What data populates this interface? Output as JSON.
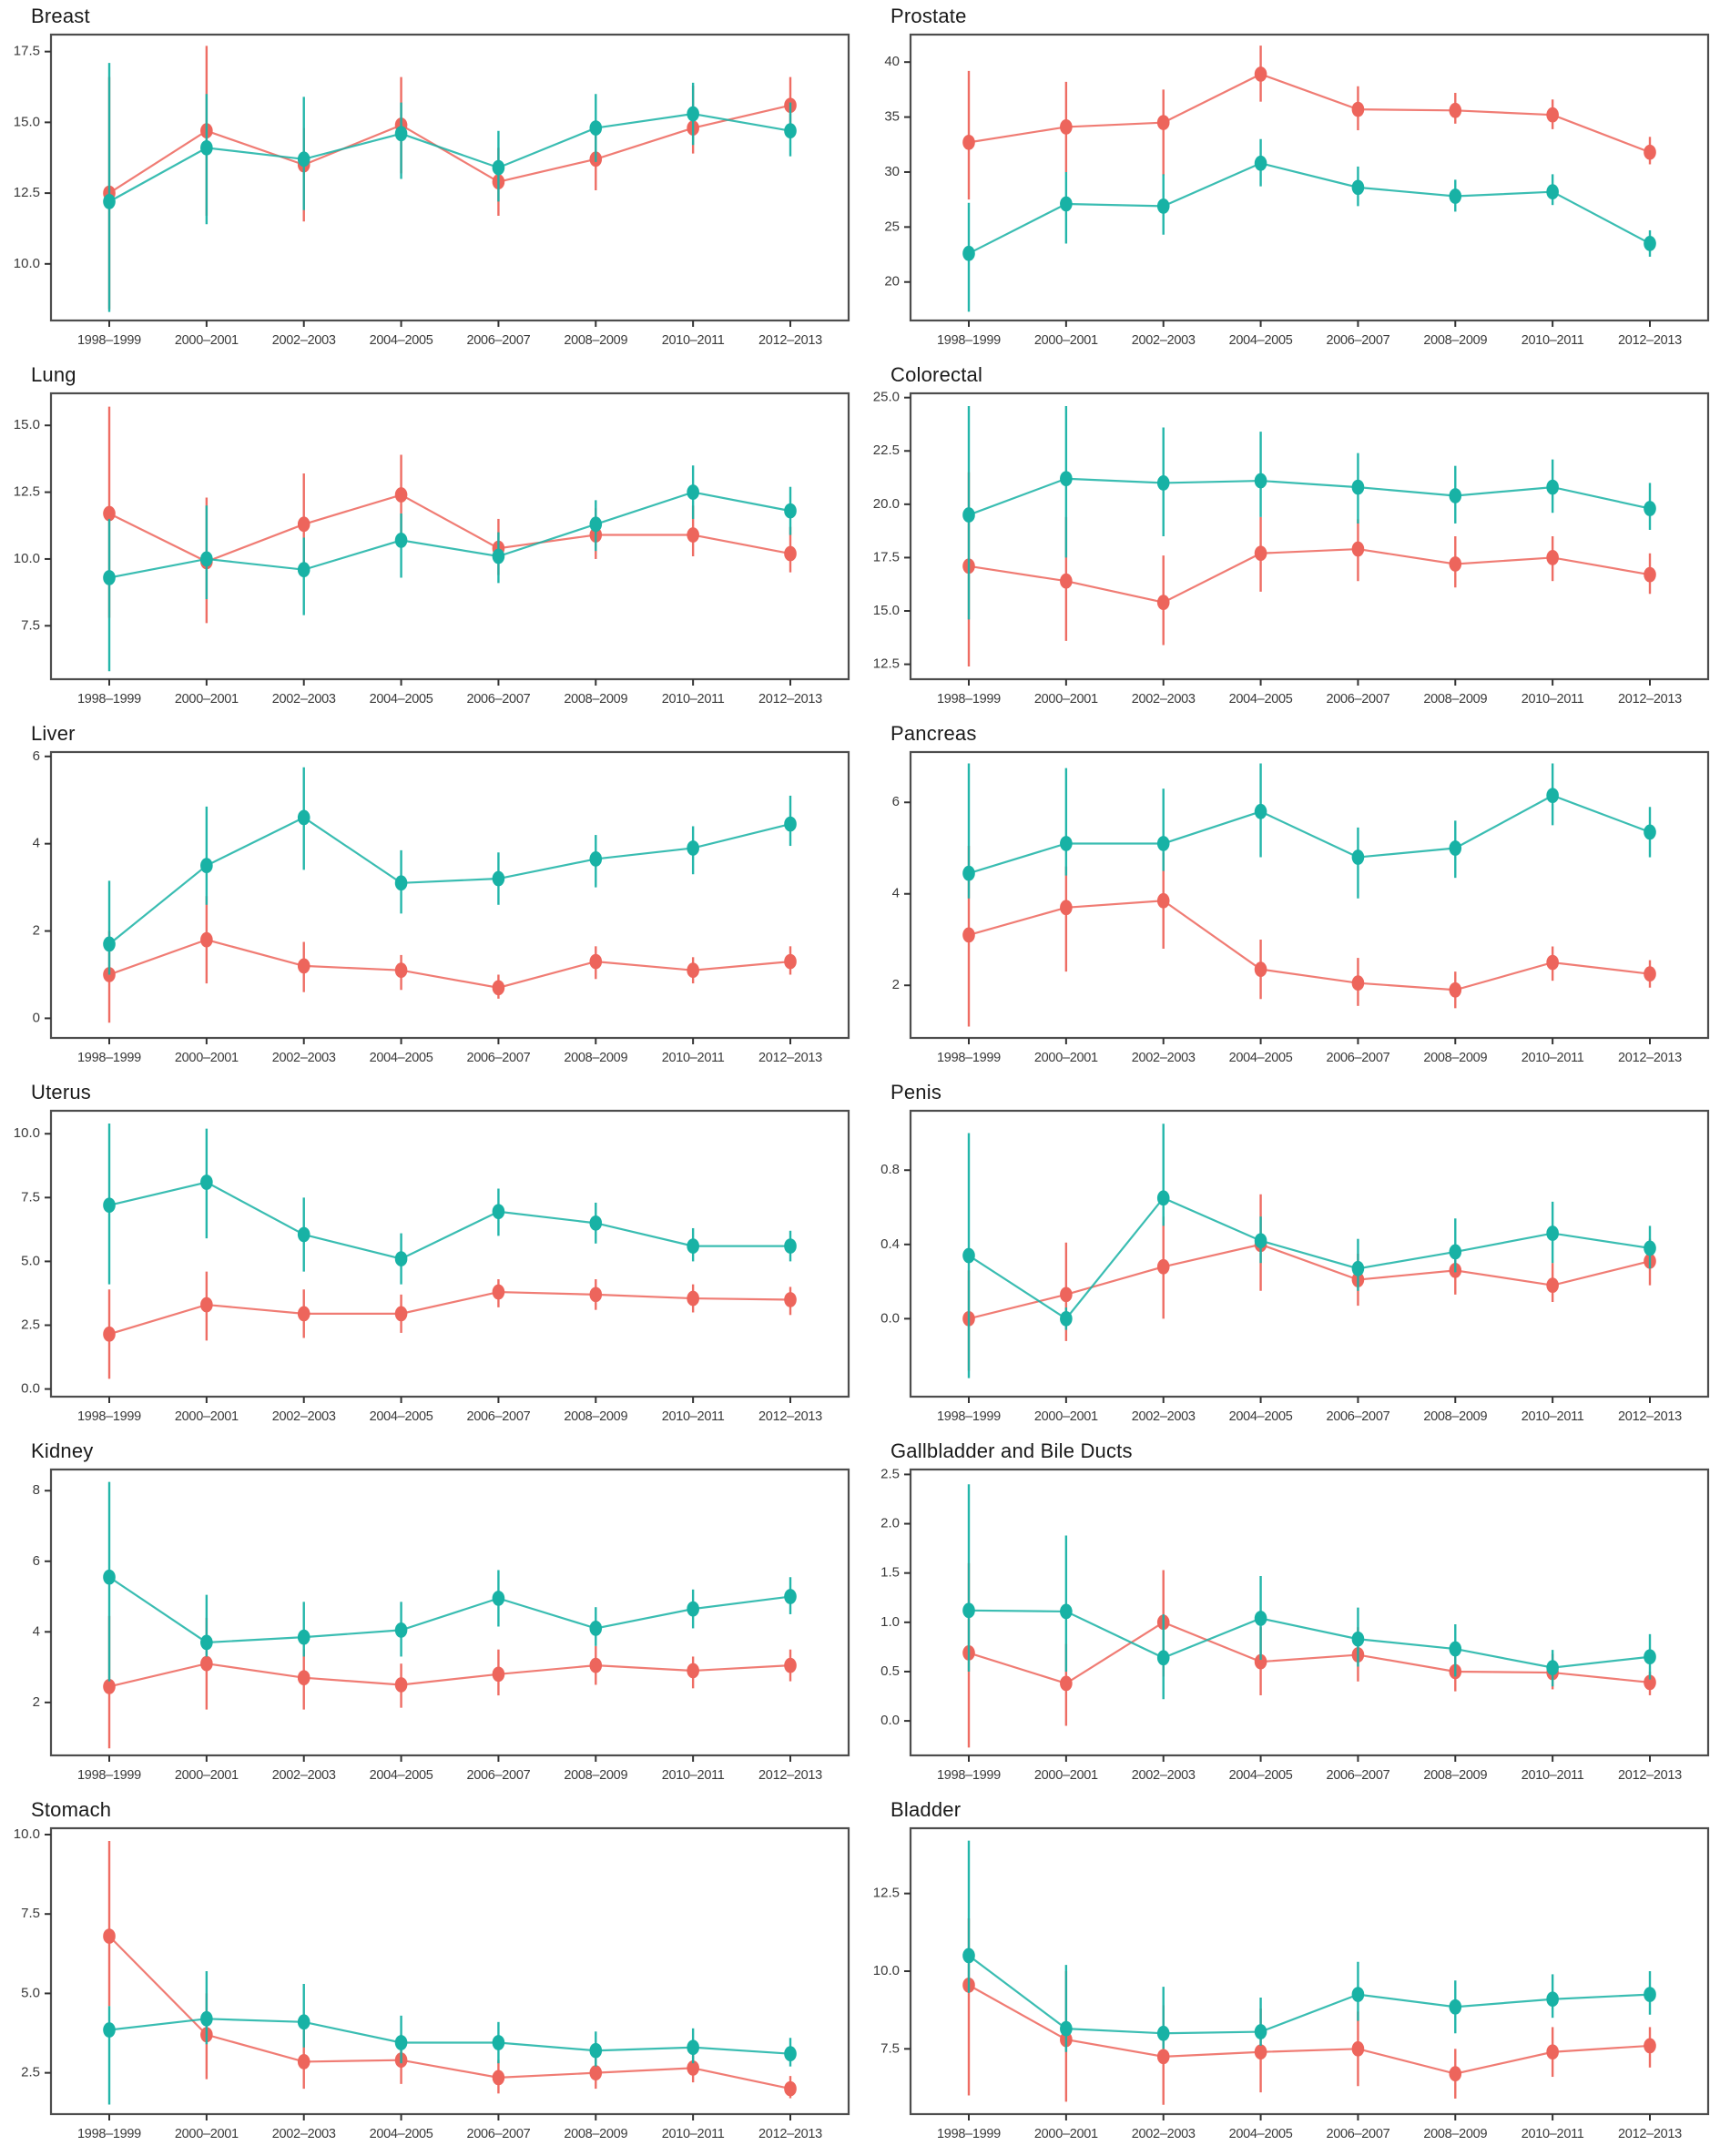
{
  "colors": {
    "red": "#ed655c",
    "teal": "#18b2a5",
    "panel_border": "#4d4d4d",
    "tick_mark": "#333333",
    "tick_text": "#3a3a3a",
    "title_text": "#1a1a1a",
    "background": "#ffffff"
  },
  "categories": [
    "1998–1999",
    "2000–2001",
    "2002–2003",
    "2004–2005",
    "2006–2007",
    "2008–2009",
    "2010–2011",
    "2012–2013"
  ],
  "chart_data": [
    {
      "type": "line+errorbar",
      "title": "Breast",
      "xlabel": "",
      "ylabel": "",
      "ytick_labels": [
        "10.0",
        "12.5",
        "15.0",
        "17.5"
      ],
      "yticks": [
        10.0,
        12.5,
        15.0,
        17.5
      ],
      "ylim": [
        8.0,
        18.1
      ],
      "series": [
        {
          "key": "red",
          "values": [
            12.5,
            14.7,
            13.5,
            14.9,
            12.9,
            13.7,
            14.8,
            15.6
          ],
          "lo": [
            8.4,
            11.7,
            11.5,
            13.2,
            11.7,
            12.6,
            13.9,
            14.5
          ],
          "hi": [
            16.6,
            17.7,
            14.8,
            16.6,
            14.1,
            14.9,
            16.3,
            16.6
          ]
        },
        {
          "key": "teal",
          "values": [
            12.2,
            14.1,
            13.7,
            14.6,
            13.4,
            14.8,
            15.3,
            14.7
          ],
          "lo": [
            8.3,
            11.4,
            11.9,
            13.0,
            12.2,
            13.6,
            14.2,
            13.8
          ],
          "hi": [
            17.1,
            16.0,
            15.9,
            15.7,
            14.7,
            16.0,
            16.4,
            15.7
          ]
        }
      ]
    },
    {
      "type": "line+errorbar",
      "title": "Prostate",
      "xlabel": "",
      "ylabel": "",
      "ytick_labels": [
        "20",
        "25",
        "30",
        "35",
        "40"
      ],
      "yticks": [
        20,
        25,
        30,
        35,
        40
      ],
      "ylim": [
        16.5,
        42.5
      ],
      "series": [
        {
          "key": "red",
          "values": [
            32.7,
            34.1,
            34.5,
            38.9,
            35.7,
            35.6,
            35.2,
            31.8
          ],
          "lo": [
            27.5,
            30.0,
            29.7,
            36.4,
            33.8,
            34.4,
            33.9,
            30.7
          ],
          "hi": [
            39.2,
            38.2,
            37.5,
            41.5,
            37.8,
            37.2,
            36.6,
            33.2
          ]
        },
        {
          "key": "teal",
          "values": [
            22.6,
            27.1,
            26.9,
            30.8,
            28.6,
            27.8,
            28.2,
            23.5
          ],
          "lo": [
            17.3,
            23.5,
            24.3,
            28.7,
            26.9,
            26.4,
            27.0,
            22.3
          ],
          "hi": [
            27.2,
            30.0,
            29.8,
            33.0,
            30.5,
            29.3,
            29.8,
            24.7
          ]
        }
      ]
    },
    {
      "type": "line+errorbar",
      "title": "Lung",
      "xlabel": "",
      "ylabel": "",
      "ytick_labels": [
        "7.5",
        "10.0",
        "12.5",
        "15.0"
      ],
      "yticks": [
        7.5,
        10.0,
        12.5,
        15.0
      ],
      "ylim": [
        5.5,
        16.2
      ],
      "series": [
        {
          "key": "red",
          "values": [
            11.7,
            9.9,
            11.3,
            12.4,
            10.4,
            10.9,
            10.9,
            10.2
          ],
          "lo": [
            7.8,
            7.6,
            9.5,
            10.9,
            9.4,
            10.0,
            10.1,
            9.5
          ],
          "hi": [
            15.7,
            12.3,
            13.2,
            13.9,
            11.5,
            11.9,
            12.0,
            11.2
          ]
        },
        {
          "key": "teal",
          "values": [
            9.3,
            10.0,
            9.6,
            10.7,
            10.1,
            11.3,
            12.5,
            11.8
          ],
          "lo": [
            5.8,
            8.5,
            7.9,
            9.3,
            9.1,
            10.3,
            11.5,
            10.9
          ],
          "hi": [
            11.5,
            12.0,
            10.8,
            11.7,
            11.0,
            12.2,
            13.5,
            12.7
          ]
        }
      ]
    },
    {
      "type": "line+errorbar",
      "title": "Colorectal",
      "xlabel": "",
      "ylabel": "",
      "ytick_labels": [
        "12.5",
        "15.0",
        "17.5",
        "20.0",
        "22.5",
        "25.0"
      ],
      "yticks": [
        12.5,
        15.0,
        17.5,
        20.0,
        22.5,
        25.0
      ],
      "ylim": [
        11.8,
        25.2
      ],
      "series": [
        {
          "key": "red",
          "values": [
            17.1,
            16.4,
            15.4,
            17.7,
            17.9,
            17.2,
            17.5,
            16.7
          ],
          "lo": [
            12.4,
            13.6,
            13.4,
            15.9,
            16.4,
            16.1,
            16.4,
            15.8
          ],
          "hi": [
            21.5,
            19.4,
            17.6,
            19.4,
            19.3,
            18.5,
            18.5,
            17.7
          ]
        },
        {
          "key": "teal",
          "values": [
            19.5,
            21.2,
            21.0,
            21.1,
            20.8,
            20.4,
            20.8,
            19.8
          ],
          "lo": [
            14.6,
            17.5,
            18.5,
            19.4,
            19.1,
            19.1,
            19.6,
            18.8
          ],
          "hi": [
            24.6,
            24.6,
            23.6,
            23.4,
            22.4,
            21.8,
            22.1,
            21.0
          ]
        }
      ]
    },
    {
      "type": "line+errorbar",
      "title": "Liver",
      "xlabel": "",
      "ylabel": "",
      "ytick_labels": [
        "0",
        "2",
        "4",
        "6"
      ],
      "yticks": [
        0,
        2,
        4,
        6
      ],
      "ylim": [
        -0.45,
        6.1
      ],
      "series": [
        {
          "key": "red",
          "values": [
            1.0,
            1.8,
            1.2,
            1.1,
            0.7,
            1.3,
            1.1,
            1.3
          ],
          "lo": [
            -0.1,
            0.8,
            0.6,
            0.65,
            0.45,
            0.9,
            0.8,
            1.0
          ],
          "hi": [
            2.0,
            2.8,
            1.75,
            1.45,
            1.0,
            1.65,
            1.4,
            1.65
          ]
        },
        {
          "key": "teal",
          "values": [
            1.7,
            3.5,
            4.6,
            3.1,
            3.2,
            3.65,
            3.9,
            4.45
          ],
          "lo": [
            1.0,
            2.6,
            3.4,
            2.4,
            2.6,
            3.0,
            3.3,
            3.95
          ],
          "hi": [
            3.15,
            4.85,
            5.75,
            3.85,
            3.8,
            4.2,
            4.4,
            5.1
          ]
        }
      ]
    },
    {
      "type": "line+errorbar",
      "title": "Pancreas",
      "xlabel": "",
      "ylabel": "",
      "ytick_labels": [
        "2",
        "4",
        "6"
      ],
      "yticks": [
        2,
        4,
        6
      ],
      "ylim": [
        0.85,
        7.1
      ],
      "series": [
        {
          "key": "red",
          "values": [
            3.1,
            3.7,
            3.85,
            2.35,
            2.05,
            1.9,
            2.5,
            2.25
          ],
          "lo": [
            1.1,
            2.3,
            2.8,
            1.7,
            1.55,
            1.5,
            2.1,
            1.95
          ],
          "hi": [
            5.05,
            4.6,
            4.9,
            3.0,
            2.6,
            2.3,
            2.85,
            2.55
          ]
        },
        {
          "key": "teal",
          "values": [
            4.45,
            5.1,
            5.1,
            5.8,
            4.8,
            5.0,
            6.15,
            5.35
          ],
          "lo": [
            3.9,
            4.4,
            4.5,
            4.8,
            3.9,
            4.35,
            5.5,
            4.8
          ],
          "hi": [
            6.85,
            6.75,
            6.3,
            6.85,
            5.45,
            5.6,
            6.85,
            5.9
          ]
        }
      ]
    },
    {
      "type": "line+errorbar",
      "title": "Uterus",
      "xlabel": "",
      "ylabel": "",
      "ytick_labels": [
        "0.0",
        "2.5",
        "5.0",
        "7.5",
        "10.0"
      ],
      "yticks": [
        0.0,
        2.5,
        5.0,
        7.5,
        10.0
      ],
      "ylim": [
        -0.3,
        10.9
      ],
      "series": [
        {
          "key": "red",
          "values": [
            2.15,
            3.3,
            2.95,
            2.95,
            3.8,
            3.7,
            3.55,
            3.5
          ],
          "lo": [
            0.4,
            1.9,
            2.0,
            2.2,
            3.2,
            3.1,
            3.0,
            2.9
          ],
          "hi": [
            3.9,
            4.6,
            3.9,
            3.7,
            4.3,
            4.3,
            4.1,
            4.0
          ]
        },
        {
          "key": "teal",
          "values": [
            7.2,
            8.1,
            6.05,
            5.1,
            6.95,
            6.5,
            5.6,
            5.6
          ],
          "lo": [
            4.1,
            5.9,
            4.6,
            4.1,
            6.0,
            5.7,
            5.0,
            5.0
          ],
          "hi": [
            10.4,
            10.2,
            7.5,
            6.1,
            7.85,
            7.3,
            6.3,
            6.2
          ]
        }
      ]
    },
    {
      "type": "line+errorbar",
      "title": "Penis",
      "xlabel": "",
      "ylabel": "",
      "ytick_labels": [
        "0.0",
        "0.4",
        "0.8"
      ],
      "yticks": [
        0.0,
        0.4,
        0.8
      ],
      "ylim": [
        -0.42,
        1.12
      ],
      "series": [
        {
          "key": "red",
          "values": [
            0.0,
            0.13,
            0.28,
            0.4,
            0.21,
            0.26,
            0.18,
            0.31
          ],
          "lo": [
            -0.28,
            -0.12,
            0.0,
            0.15,
            0.07,
            0.13,
            0.09,
            0.18
          ],
          "hi": [
            0.26,
            0.41,
            0.55,
            0.67,
            0.35,
            0.4,
            0.3,
            0.43
          ]
        },
        {
          "key": "teal",
          "values": [
            0.34,
            0.0,
            0.65,
            0.42,
            0.27,
            0.36,
            0.46,
            0.38
          ],
          "lo": [
            -0.32,
            -0.06,
            0.5,
            0.3,
            0.15,
            0.25,
            0.3,
            0.27
          ],
          "hi": [
            1.0,
            0.06,
            1.05,
            0.55,
            0.43,
            0.54,
            0.63,
            0.5
          ]
        }
      ]
    },
    {
      "type": "line+errorbar",
      "title": "Kidney",
      "xlabel": "",
      "ylabel": "",
      "ytick_labels": [
        "2",
        "4",
        "6",
        "8"
      ],
      "yticks": [
        2,
        4,
        6,
        8
      ],
      "ylim": [
        0.5,
        8.6
      ],
      "series": [
        {
          "key": "red",
          "values": [
            2.45,
            3.1,
            2.7,
            2.5,
            2.8,
            3.05,
            2.9,
            3.05
          ],
          "lo": [
            0.7,
            1.8,
            1.8,
            1.85,
            2.2,
            2.5,
            2.4,
            2.6
          ],
          "hi": [
            4.45,
            4.4,
            3.5,
            3.1,
            3.5,
            3.6,
            3.3,
            3.5
          ]
        },
        {
          "key": "teal",
          "values": [
            5.55,
            3.7,
            3.85,
            4.05,
            4.95,
            4.1,
            4.65,
            5.0
          ],
          "lo": [
            2.6,
            3.3,
            3.3,
            3.3,
            4.15,
            3.6,
            4.1,
            4.5
          ],
          "hi": [
            8.25,
            5.05,
            4.85,
            4.85,
            5.75,
            4.7,
            5.2,
            5.55
          ]
        }
      ]
    },
    {
      "type": "line+errorbar",
      "title": "Gallbladder and Bile Ducts",
      "xlabel": "",
      "ylabel": "",
      "ytick_labels": [
        "0.0",
        "0.5",
        "1.0",
        "1.5",
        "2.0",
        "2.5"
      ],
      "yticks": [
        0.0,
        0.5,
        1.0,
        1.5,
        2.0,
        2.5
      ],
      "ylim": [
        -0.35,
        2.55
      ],
      "series": [
        {
          "key": "red",
          "values": [
            0.69,
            0.38,
            1.0,
            0.6,
            0.67,
            0.5,
            0.49,
            0.39
          ],
          "lo": [
            -0.27,
            -0.05,
            0.45,
            0.26,
            0.4,
            0.3,
            0.32,
            0.26
          ],
          "hi": [
            1.6,
            0.78,
            1.53,
            0.95,
            0.95,
            0.7,
            0.68,
            0.5
          ]
        },
        {
          "key": "teal",
          "values": [
            1.12,
            1.11,
            0.64,
            1.04,
            0.83,
            0.73,
            0.54,
            0.65
          ],
          "lo": [
            0.5,
            0.5,
            0.22,
            0.62,
            0.55,
            0.45,
            0.35,
            0.42
          ],
          "hi": [
            2.4,
            1.88,
            1.08,
            1.47,
            1.15,
            0.98,
            0.72,
            0.88
          ]
        }
      ]
    },
    {
      "type": "line+errorbar",
      "title": "Stomach",
      "xlabel": "",
      "ylabel": "",
      "ytick_labels": [
        "2.5",
        "5.0",
        "7.5",
        "10.0"
      ],
      "yticks": [
        2.5,
        5.0,
        7.5,
        10.0
      ],
      "ylim": [
        1.2,
        10.2
      ],
      "series": [
        {
          "key": "red",
          "values": [
            6.8,
            3.7,
            2.85,
            2.9,
            2.35,
            2.5,
            2.65,
            2.0
          ],
          "lo": [
            4.6,
            2.3,
            2.0,
            2.15,
            1.85,
            2.0,
            2.2,
            1.7
          ],
          "hi": [
            9.8,
            5.0,
            3.9,
            3.7,
            2.9,
            3.1,
            3.2,
            2.4
          ]
        },
        {
          "key": "teal",
          "values": [
            3.85,
            4.2,
            4.1,
            3.45,
            3.45,
            3.2,
            3.3,
            3.1
          ],
          "lo": [
            1.5,
            3.4,
            3.3,
            2.8,
            2.8,
            2.7,
            2.8,
            2.7
          ],
          "hi": [
            4.6,
            5.7,
            5.3,
            4.3,
            4.1,
            3.8,
            3.9,
            3.6
          ]
        }
      ]
    },
    {
      "type": "line+errorbar",
      "title": "Bladder",
      "xlabel": "",
      "ylabel": "",
      "ytick_labels": [
        "7.5",
        "10.0",
        "12.5"
      ],
      "yticks": [
        7.5,
        10.0,
        12.5
      ],
      "ylim": [
        5.4,
        14.6
      ],
      "series": [
        {
          "key": "red",
          "values": [
            9.55,
            7.8,
            7.25,
            7.4,
            7.5,
            6.7,
            7.4,
            7.6
          ],
          "lo": [
            6.0,
            5.8,
            5.7,
            6.1,
            6.3,
            5.9,
            6.6,
            6.9
          ],
          "hi": [
            11.7,
            10.0,
            8.9,
            8.8,
            8.7,
            7.5,
            8.2,
            8.2
          ]
        },
        {
          "key": "teal",
          "values": [
            10.5,
            8.15,
            8.0,
            8.05,
            9.25,
            8.85,
            9.1,
            9.25
          ],
          "lo": [
            9.3,
            7.4,
            7.5,
            7.6,
            8.4,
            8.0,
            8.5,
            8.6
          ],
          "hi": [
            14.2,
            10.2,
            9.5,
            9.15,
            10.3,
            9.7,
            9.9,
            10.0
          ]
        }
      ]
    }
  ]
}
